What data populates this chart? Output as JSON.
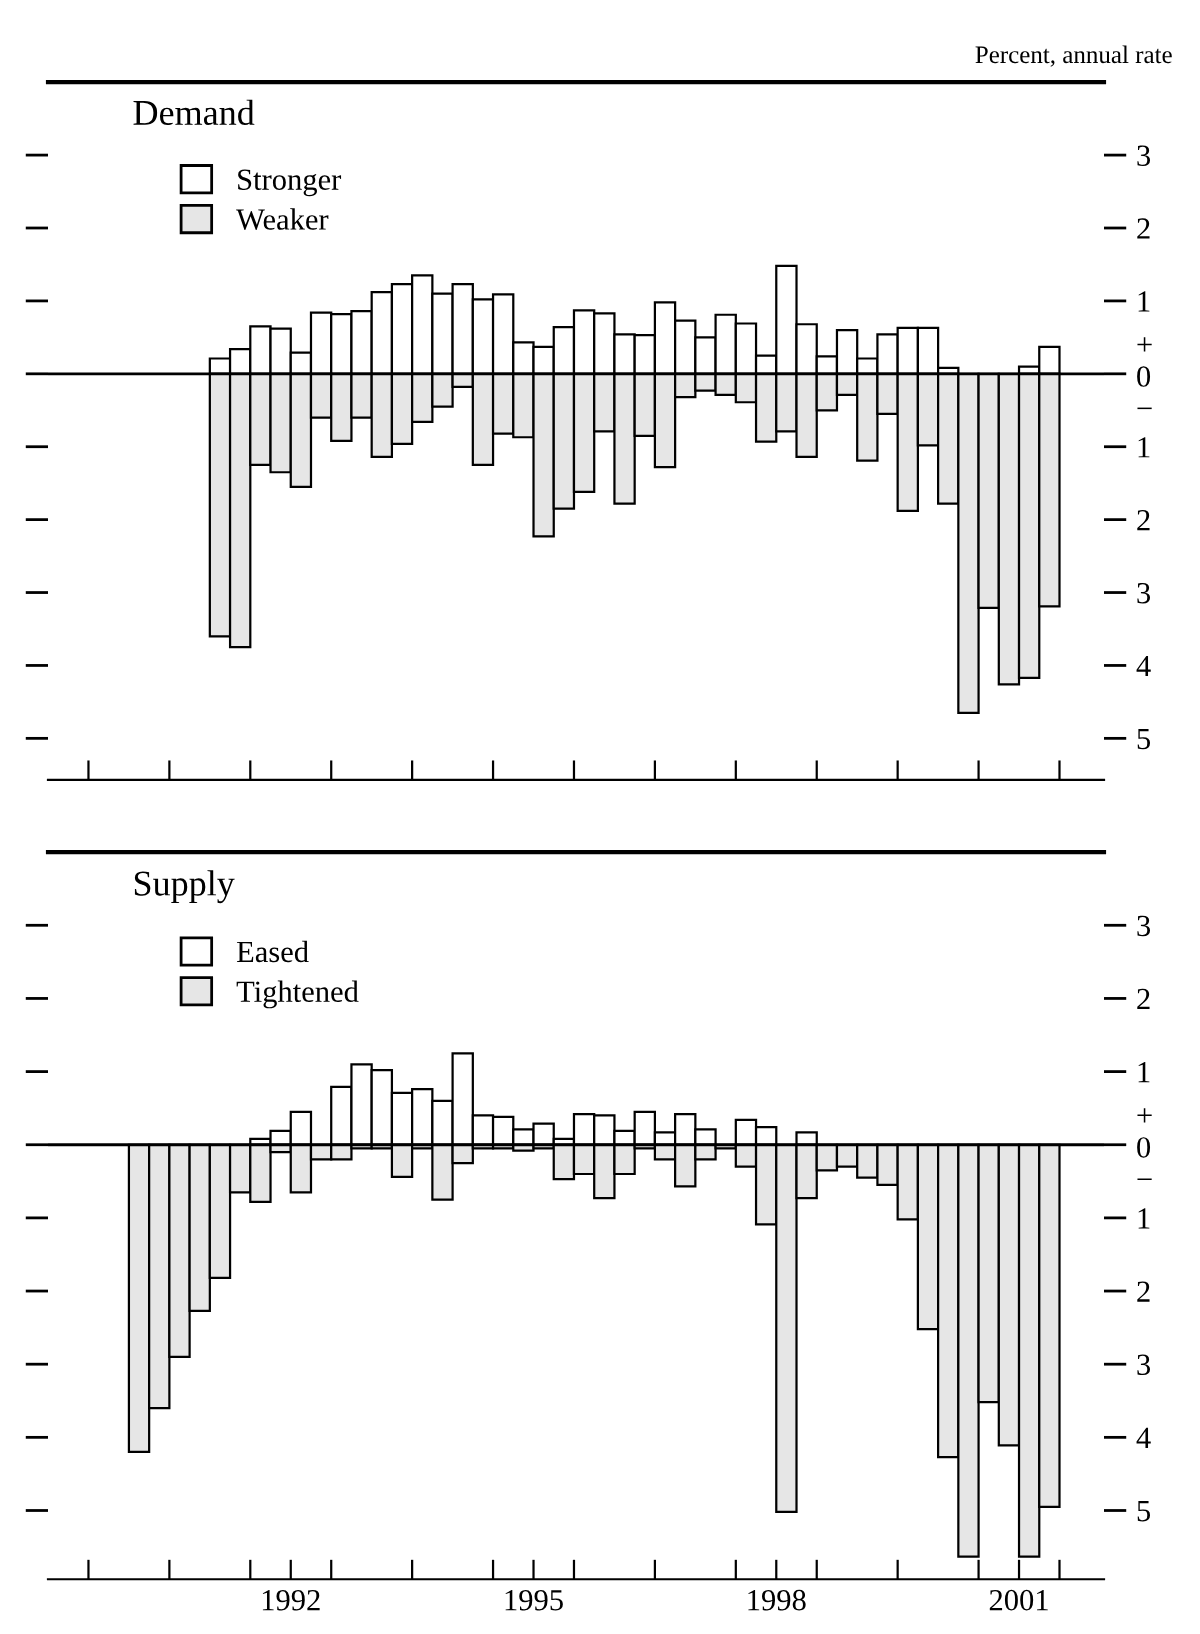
{
  "chart_data": [
    {
      "type": "bar",
      "title": "Demand",
      "annotations": [
        "Percent, annual rate"
      ],
      "ref_lines": [
        {
          "axis": "y",
          "value": 0
        }
      ],
      "stacked": true,
      "legend": "top left",
      "tick_labels": "y",
      "grid": false,
      "x": [
        1991.625,
        1991.875,
        1992.125,
        1992.375,
        1992.625,
        1992.875,
        1993.125,
        1993.375,
        1993.625,
        1993.875,
        1994.125,
        1994.375,
        1994.625,
        1994.875,
        1995.125,
        1995.375,
        1995.625,
        1995.875,
        1996.125,
        1996.375,
        1996.625,
        1996.875,
        1997.125,
        1997.375,
        1997.625,
        1997.875,
        1998.125,
        1998.375,
        1998.625,
        1998.875,
        1999.125,
        1999.375,
        1999.625,
        1999.875,
        2000.125,
        2000.375,
        2000.625,
        2000.875,
        2001.125,
        2001.375,
        2001.625,
        2001.875
      ],
      "series": [
        {
          "name": "Stronger",
          "color": "#ffffff",
          "values": [
            0.21,
            0.34,
            0.65,
            0.62,
            0.29,
            0.84,
            0.82,
            0.86,
            1.12,
            1.23,
            1.35,
            1.1,
            1.23,
            1.02,
            1.09,
            0.43,
            0.37,
            0.64,
            0.87,
            0.83,
            0.54,
            0.53,
            0.98,
            0.73,
            0.5,
            0.81,
            0.69,
            0.25,
            1.48,
            0.68,
            0.24,
            0.6,
            0.21,
            0.54,
            0.63,
            0.63,
            0.08,
            null,
            null,
            null,
            0.1,
            0.37
          ]
        },
        {
          "name": "Weaker",
          "color": "#e6e6e6",
          "values": [
            -3.6,
            -3.75,
            -1.25,
            -1.35,
            -1.55,
            -0.6,
            -0.92,
            -0.6,
            -1.14,
            -0.96,
            -0.66,
            -0.45,
            -0.18,
            -1.25,
            -0.82,
            -0.87,
            -2.23,
            -1.85,
            -1.62,
            -0.79,
            -1.78,
            -0.85,
            -1.28,
            -0.32,
            -0.23,
            -0.29,
            -0.39,
            -0.93,
            -0.79,
            -1.14,
            -0.5,
            -0.29,
            -1.19,
            -0.55,
            -1.88,
            -0.98,
            -1.78,
            -4.65,
            -3.21,
            -4.26,
            -4.17,
            -3.19
          ]
        }
      ],
      "xlim": [
        1989.5,
        2002.55
      ],
      "xticks": [
        {
          "value": 1990,
          "label": null
        },
        {
          "value": 1991,
          "label": null
        },
        {
          "value": 1992,
          "label": null
        },
        {
          "value": 1993,
          "label": null
        },
        {
          "value": 1994,
          "label": null
        },
        {
          "value": 1995,
          "label": null
        },
        {
          "value": 1996,
          "label": null
        },
        {
          "value": 1997,
          "label": null
        },
        {
          "value": 1998,
          "label": null
        },
        {
          "value": 1999,
          "label": null
        },
        {
          "value": 2000,
          "label": null
        },
        {
          "value": 2001,
          "label": null
        },
        {
          "value": 2002,
          "label": null
        }
      ],
      "ylim": [
        -5.57,
        4
      ],
      "yticks": [
        {
          "value": -5,
          "label": "5"
        },
        {
          "value": -4,
          "label": "4"
        },
        {
          "value": -3,
          "label": "3"
        },
        {
          "value": -2,
          "label": "2"
        },
        {
          "value": -1,
          "label": "1"
        },
        {
          "value": 0,
          "label": "+\n0\n−"
        },
        1,
        2,
        3
      ]
    },
    {
      "type": "bar",
      "title": "Supply",
      "ref_lines": [
        {
          "axis": "y",
          "value": 0
        }
      ],
      "stacked": true,
      "legend": "top left",
      "grid": false,
      "x": [
        1990.625,
        1990.875,
        1991.125,
        1991.375,
        1991.625,
        1991.875,
        1992.125,
        1992.375,
        1992.625,
        1992.875,
        1993.125,
        1993.375,
        1993.625,
        1993.875,
        1994.125,
        1994.375,
        1994.625,
        1994.875,
        1995.125,
        1995.375,
        1995.625,
        1995.875,
        1996.125,
        1996.375,
        1996.625,
        1996.875,
        1997.125,
        1997.375,
        1997.625,
        1997.875,
        1998.125,
        1998.375,
        1998.625,
        1998.875,
        1999.125,
        1999.375,
        1999.625,
        1999.875,
        2000.125,
        2000.375,
        2000.625,
        2000.875,
        2001.125,
        2001.375,
        2001.625,
        2001.875
      ],
      "series": [
        {
          "name": "Eased",
          "color": "#ffffff",
          "values": [
            null,
            null,
            null,
            null,
            null,
            null,
            0.08,
            0.19,
            0.45,
            null,
            0.79,
            1.1,
            1.02,
            0.71,
            0.76,
            0.6,
            1.25,
            0.4,
            0.38,
            0.21,
            0.29,
            0.08,
            0.42,
            0.4,
            0.19,
            0.45,
            0.17,
            0.42,
            0.21,
            null,
            0.34,
            0.24,
            null,
            0.17,
            null,
            null,
            null,
            null,
            null,
            null,
            null,
            null,
            null,
            null,
            null,
            null
          ]
        },
        {
          "name": "Tightened",
          "color": "#e6e6e6",
          "values": [
            -4.2,
            -3.6,
            -2.9,
            -2.27,
            -1.82,
            -0.65,
            -0.78,
            -0.1,
            -0.65,
            -0.2,
            -0.2,
            -0.05,
            -0.05,
            -0.44,
            -0.05,
            -0.75,
            -0.25,
            -0.05,
            -0.05,
            -0.08,
            -0.05,
            -0.47,
            -0.4,
            -0.73,
            -0.4,
            -0.05,
            -0.2,
            -0.57,
            -0.2,
            -0.05,
            -0.3,
            -1.09,
            -5.02,
            -0.73,
            -0.35,
            -0.3,
            -0.45,
            -0.55,
            -1.02,
            -2.52,
            -4.27,
            -5.63,
            -3.52,
            -4.11,
            -5.63,
            -4.95
          ]
        }
      ],
      "xlim": [
        1989.5,
        2002.55
      ],
      "xticks": [
        {
          "value": 1990,
          "label": null
        },
        {
          "value": 1991,
          "label": null
        },
        {
          "value": 1992,
          "label": null
        },
        {
          "value": 1992.5,
          "label": "1992"
        },
        {
          "value": 1993,
          "label": null
        },
        {
          "value": 1994,
          "label": null
        },
        {
          "value": 1995,
          "label": null
        },
        {
          "value": 1995.5,
          "label": "1995"
        },
        {
          "value": 1996,
          "label": null
        },
        {
          "value": 1997,
          "label": null
        },
        {
          "value": 1998,
          "label": null
        },
        {
          "value": 1998.5,
          "label": "1998"
        },
        {
          "value": 1999,
          "label": null
        },
        {
          "value": 2000,
          "label": null
        },
        {
          "value": 2001,
          "label": null
        },
        {
          "value": 2001.5,
          "label": "2001"
        },
        {
          "value": 2002,
          "label": null
        }
      ],
      "ylim": [
        -5.94,
        4
      ],
      "yticks": [
        {
          "value": -5,
          "label": "5"
        },
        {
          "value": -4,
          "label": "4"
        },
        {
          "value": -3,
          "label": "3"
        },
        {
          "value": -2,
          "label": "2"
        },
        {
          "value": -1,
          "label": "1"
        },
        {
          "value": 0,
          "label": "+\n0\n−"
        },
        1,
        2,
        3
      ]
    }
  ]
}
